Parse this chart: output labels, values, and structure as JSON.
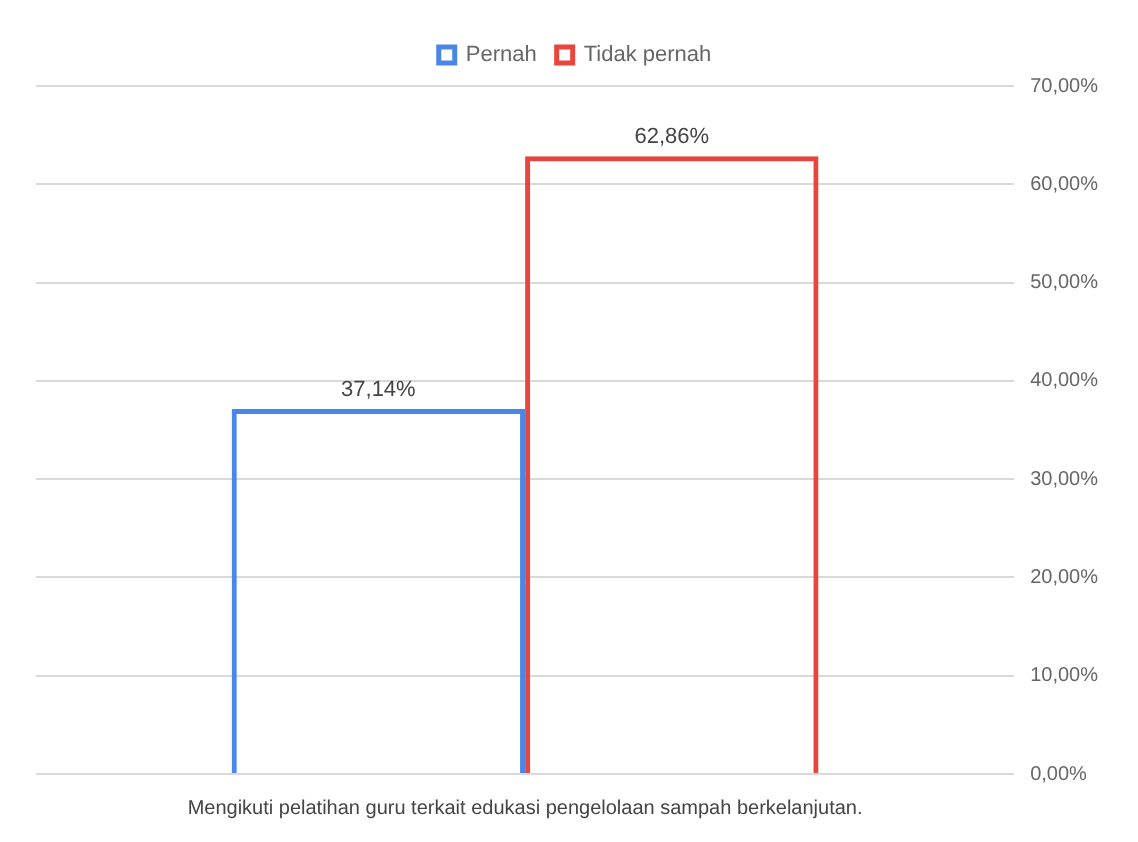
{
  "chart_data": {
    "type": "bar",
    "categories": [
      "Mengikuti pelatihan guru terkait edukasi pengelolaan sampah berkelanjutan."
    ],
    "series": [
      {
        "name": "Pernah",
        "color": "#4a86e8",
        "values": [
          37.14
        ],
        "value_labels": [
          "37,14%"
        ]
      },
      {
        "name": "Tidak pernah",
        "color": "#e8453c",
        "values": [
          62.86
        ],
        "value_labels": [
          "62,86%"
        ]
      }
    ],
    "ylim": [
      0,
      70
    ],
    "yticks": [
      {
        "value": 0,
        "label": "0,00%"
      },
      {
        "value": 10,
        "label": "10,00%"
      },
      {
        "value": 20,
        "label": "20,00%"
      },
      {
        "value": 30,
        "label": "30,00%"
      },
      {
        "value": 40,
        "label": "40,00%"
      },
      {
        "value": 50,
        "label": "50,00%"
      },
      {
        "value": 60,
        "label": "60,00%"
      },
      {
        "value": 70,
        "label": "70,00%"
      }
    ],
    "grid": "y",
    "legend": "top"
  }
}
